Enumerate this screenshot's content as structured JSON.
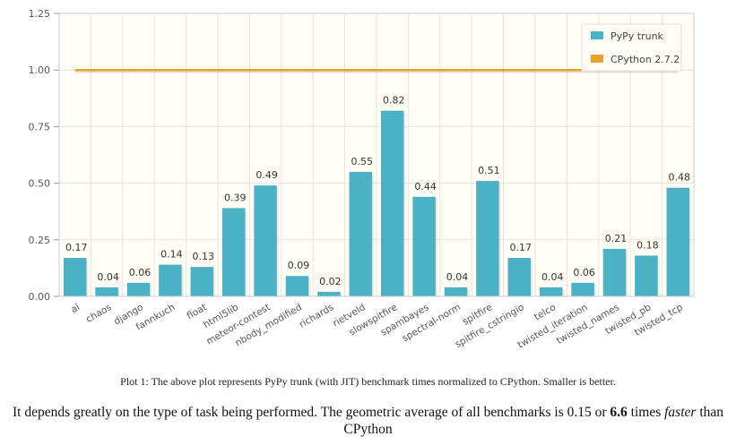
{
  "chart_data": {
    "type": "bar",
    "categories": [
      "ai",
      "chaos",
      "django",
      "fannkuch",
      "float",
      "html5lib",
      "meteor-contest",
      "nbody_modified",
      "richards",
      "rietveld",
      "slowspitfire",
      "spambayes",
      "spectral-norm",
      "spitfire",
      "spitfire_cstringio",
      "telco",
      "twisted_iteration",
      "twisted_names",
      "twisted_pb",
      "twisted_tcp"
    ],
    "series": [
      {
        "name": "PyPy trunk",
        "values": [
          0.17,
          0.04,
          0.06,
          0.14,
          0.13,
          0.39,
          0.49,
          0.09,
          0.02,
          0.55,
          0.82,
          0.44,
          0.04,
          0.51,
          0.17,
          0.04,
          0.06,
          0.21,
          0.18,
          0.48
        ],
        "labels": [
          "0.17",
          "0.04",
          "0.06",
          "0.14",
          "0.13",
          "0.39",
          "0.49",
          "0.09",
          "0.02",
          "0.55",
          "0.82",
          "0.44",
          "0.04",
          "0.51",
          "0.17",
          "0.04",
          "0.06",
          "0.21",
          "0.18",
          "0.48"
        ],
        "color": "#4bb2c5"
      },
      {
        "name": "CPython 2.7.2",
        "type": "line",
        "value": 1.0,
        "color": "#eaa228"
      }
    ],
    "ylim": [
      0,
      1.25
    ],
    "yticks": [
      "0.00",
      "0.25",
      "0.50",
      "0.75",
      "1.00",
      "1.25"
    ],
    "ytick_values": [
      0,
      0.25,
      0.5,
      0.75,
      1.0,
      1.25
    ],
    "grid": true,
    "legend": "top-right",
    "background": "#fffdf6"
  },
  "caption": "Plot 1: The above plot represents PyPy trunk (with JIT) benchmark times normalized to CPython. Smaller is better.",
  "summary": {
    "part1": "It depends greatly on the type of task being performed. The geometric average of all benchmarks is 0.15 or ",
    "bold": "6.6",
    "part2": " times ",
    "italic": "faster",
    "part3": " than CPython"
  }
}
